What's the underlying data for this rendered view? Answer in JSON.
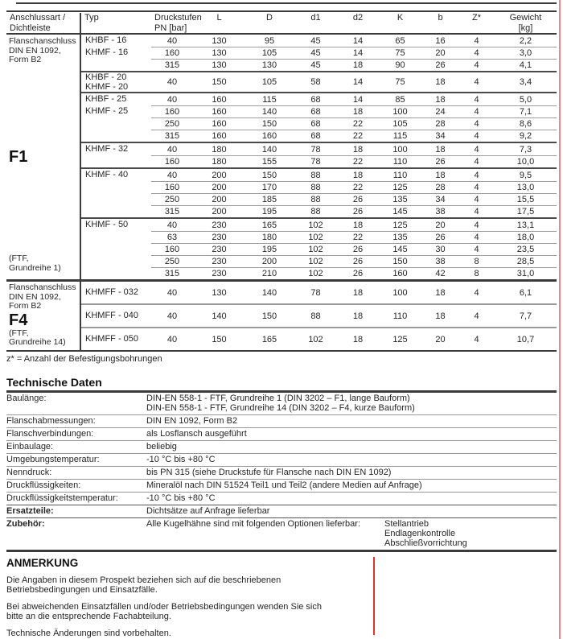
{
  "colors": {
    "red_marker": "#d93535",
    "page_edge": "#de9090"
  },
  "table": {
    "headers": [
      {
        "lines": [
          "Anschlussart /",
          "Dichtleiste"
        ]
      },
      {
        "lines": [
          "Typ"
        ]
      },
      {
        "lines": [
          "Druckstufen",
          "PN  [bar]"
        ]
      },
      {
        "lines": [
          "L"
        ]
      },
      {
        "lines": [
          "D"
        ]
      },
      {
        "lines": [
          "d1"
        ]
      },
      {
        "lines": [
          "d2"
        ]
      },
      {
        "lines": [
          "K"
        ]
      },
      {
        "lines": [
          "b"
        ]
      },
      {
        "lines": [
          "Z*"
        ]
      },
      {
        "lines": [
          "Gewicht",
          "[kg]"
        ]
      }
    ],
    "sections": [
      {
        "name": "F1",
        "label_top": [
          "Flanschanschluss",
          "DIN EN 1092,",
          "Form B2"
        ],
        "label_big": "F1",
        "label_bottom": [
          "(FTF,",
          "Grundreihe 1)"
        ],
        "groups": [
          {
            "typ": [
              "KHBF - 16",
              "KHMF - 16"
            ],
            "rows": [
              [
                "40",
                "130",
                "95",
                "45",
                "14",
                "65",
                "16",
                "4",
                "2,2"
              ],
              [
                "160",
                "130",
                "105",
                "45",
                "14",
                "75",
                "20",
                "4",
                "3,0"
              ],
              [
                "315",
                "130",
                "130",
                "45",
                "18",
                "90",
                "26",
                "4",
                "4,1"
              ]
            ]
          },
          {
            "typ": [
              "KHBF - 20",
              "KHMF - 20"
            ],
            "tall": true,
            "rows": [
              [
                "40",
                "150",
                "105",
                "58",
                "14",
                "75",
                "18",
                "4",
                "3,4"
              ]
            ]
          },
          {
            "typ": [
              "KHBF - 25",
              "KHMF - 25"
            ],
            "rows": [
              [
                "40",
                "160",
                "115",
                "68",
                "14",
                "85",
                "18",
                "4",
                "5,0"
              ],
              [
                "160",
                "160",
                "140",
                "68",
                "18",
                "100",
                "24",
                "4",
                "7,1"
              ],
              [
                "250",
                "160",
                "150",
                "68",
                "22",
                "105",
                "28",
                "4",
                "8,6"
              ],
              [
                "315",
                "160",
                "160",
                "68",
                "22",
                "115",
                "34",
                "4",
                "9,2"
              ]
            ]
          },
          {
            "typ": [
              "KHMF - 32"
            ],
            "rows": [
              [
                "40",
                "180",
                "140",
                "78",
                "18",
                "100",
                "18",
                "4",
                "7,3"
              ],
              [
                "160",
                "180",
                "155",
                "78",
                "22",
                "110",
                "26",
                "4",
                "10,0"
              ]
            ]
          },
          {
            "typ": [
              "KHMF - 40"
            ],
            "rows": [
              [
                "40",
                "200",
                "150",
                "88",
                "18",
                "110",
                "18",
                "4",
                "9,5"
              ],
              [
                "160",
                "200",
                "170",
                "88",
                "22",
                "125",
                "28",
                "4",
                "13,0"
              ],
              [
                "250",
                "200",
                "185",
                "88",
                "26",
                "135",
                "34",
                "4",
                "15,5"
              ],
              [
                "315",
                "200",
                "195",
                "88",
                "26",
                "145",
                "38",
                "4",
                "17,5"
              ]
            ]
          },
          {
            "typ": [
              "KHMF - 50"
            ],
            "rows": [
              [
                "40",
                "230",
                "165",
                "102",
                "18",
                "125",
                "20",
                "4",
                "13,1"
              ],
              [
                "63",
                "230",
                "180",
                "102",
                "22",
                "135",
                "26",
                "4",
                "18,0"
              ],
              [
                "160",
                "230",
                "195",
                "102",
                "26",
                "145",
                "30",
                "4",
                "23,5"
              ],
              [
                "250",
                "230",
                "200",
                "102",
                "26",
                "150",
                "38",
                "8",
                "28,5"
              ],
              [
                "315",
                "230",
                "210",
                "102",
                "26",
                "160",
                "42",
                "8",
                "31,0"
              ]
            ]
          }
        ]
      },
      {
        "name": "F4",
        "label_top": [
          "Flanschanschluss",
          "DIN EN 1092,",
          "Form B2"
        ],
        "label_big": "F4",
        "label_bottom": [
          "(FTF,",
          "Grundreihe 14)"
        ],
        "groups": [
          {
            "typ": [
              "KHMFF - 032"
            ],
            "rows": [
              [
                "40",
                "130",
                "140",
                "78",
                "18",
                "100",
                "18",
                "4",
                "6,1"
              ]
            ]
          },
          {
            "typ": [
              "KHMFF - 040"
            ],
            "rows": [
              [
                "40",
                "140",
                "150",
                "88",
                "18",
                "110",
                "18",
                "4",
                "7,7"
              ]
            ]
          },
          {
            "typ": [
              "KHMFF - 050"
            ],
            "rows": [
              [
                "40",
                "150",
                "165",
                "102",
                "18",
                "125",
                "20",
                "4",
                "10,7"
              ]
            ]
          }
        ]
      }
    ],
    "footnote": "z* = Anzahl der Befestigungsbohrungen"
  },
  "tech": {
    "title": "Technische Daten",
    "rows": [
      {
        "label": "Baulänge:",
        "values": [
          "DIN-EN 558-1 - FTF, Grundreihe  1 (DIN 3202 – F1, lange Bauform)",
          "DIN-EN 558-1 - FTF, Grundreihe 14 (DIN 3202 – F4, kurze Bauform)"
        ]
      },
      {
        "label": "Flanschabmessungen:",
        "values": [
          "DIN EN 1092, Form B2"
        ]
      },
      {
        "label": "Flanschverbindungen:",
        "values": [
          "als Losflansch ausgeführt"
        ]
      },
      {
        "label": "Einbaulage:",
        "values": [
          "beliebig"
        ]
      },
      {
        "label": "Umgebungstemperatur:",
        "values": [
          "-10 °C bis +80 °C"
        ]
      },
      {
        "label": "Nenndruck:",
        "values": [
          "bis PN 315 (siehe Druckstufe für Flansche nach DIN EN 1092)"
        ]
      },
      {
        "label": "Druckflüssigkeiten:",
        "values": [
          "Mineralöl nach DIN 51524 Teil1 und Teil2 (andere Medien auf Anfrage)"
        ]
      },
      {
        "label": "Druckflüssigkeitstemperatur:",
        "values": [
          "-10 °C bis +80 °C"
        ],
        "sep": "strong"
      },
      {
        "label": "Ersatzteile:",
        "bold": true,
        "values": [
          "Dichtsätze auf Anfrage lieferbar"
        ],
        "sep": "strong"
      },
      {
        "label": "Zubehör:",
        "bold": true,
        "values": [
          "Alle Kugelhähne sind mit folgenden Optionen lieferbar:"
        ],
        "options": [
          "Stellantrieb",
          "Endlagenkontrolle",
          "Abschließvorrichtung"
        ]
      }
    ]
  },
  "anmerkung": {
    "title": "ANMERKUNG",
    "paragraphs": [
      [
        "Die Angaben in diesem Prospekt beziehen sich auf die beschriebenen",
        "Betriebsbedingungen und Einsatzfälle."
      ],
      [
        "Bei abweichenden Einsatzfällen und/oder Betriebsbedingungen wenden Sie sich",
        "bitte an die entsprechende Fachabteilung."
      ],
      [
        "Technische Änderungen sind vorbehalten."
      ]
    ]
  }
}
